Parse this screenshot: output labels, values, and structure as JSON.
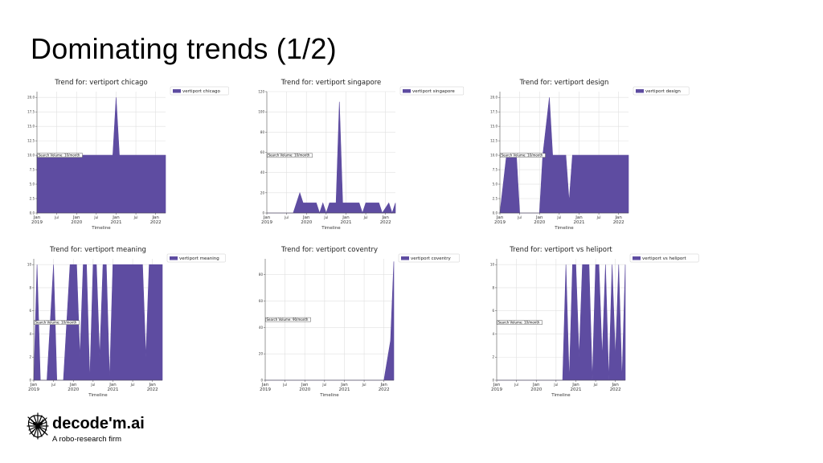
{
  "slide": {
    "title": "Dominating trends (1/2)"
  },
  "brand": {
    "name": "decode'm.ai",
    "tagline": "A robo-research firm",
    "logo_icon": "scribble-face-logo-icon"
  },
  "colors": {
    "fill": "#5e4ca1",
    "grid": "#e0e0e0",
    "axis": "#444444"
  },
  "chart_data": [
    {
      "type": "area",
      "title": "Trend for: vertiport chicago",
      "xlabel": "Timeline",
      "ylabel": "",
      "legend": "vertiport chicago",
      "legend_position": "outside-right",
      "annotation": "Search Volume: 10/month",
      "x_range": [
        "2019-01",
        "2022-04"
      ],
      "ylim": [
        0,
        21
      ],
      "yticks": [
        "0.0",
        "2.5",
        "5.0",
        "7.5",
        "10.0",
        "12.5",
        "15.0",
        "17.5",
        "20.0"
      ],
      "xticks": [
        {
          "date": "2019-01",
          "label": "Jan\n2019"
        },
        {
          "date": "2019-07",
          "label": "Jul"
        },
        {
          "date": "2020-01",
          "label": "Jan\n2020"
        },
        {
          "date": "2020-07",
          "label": "Jul"
        },
        {
          "date": "2021-01",
          "label": "Jan\n2021"
        },
        {
          "date": "2021-07",
          "label": "Jul"
        },
        {
          "date": "2022-01",
          "label": "Jan\n2022"
        }
      ],
      "grid": true,
      "points": [
        [
          "2019-01",
          10
        ],
        [
          "2020-12",
          10
        ],
        [
          "2021-01",
          20
        ],
        [
          "2021-02",
          10
        ],
        [
          "2022-04",
          10
        ]
      ]
    },
    {
      "type": "area",
      "title": "Trend for: vertiport singapore",
      "xlabel": "Timeline",
      "ylabel": "",
      "legend": "vertiport singapore",
      "legend_position": "outside-right",
      "annotation": "Search Volume: 10/month",
      "x_range": [
        "2019-01",
        "2022-04"
      ],
      "ylim": [
        0,
        120
      ],
      "yticks": [
        "0",
        "20",
        "40",
        "60",
        "80",
        "100",
        "120"
      ],
      "xticks": [
        {
          "date": "2019-01",
          "label": "Jan\n2019"
        },
        {
          "date": "2019-07",
          "label": "Jul"
        },
        {
          "date": "2020-01",
          "label": "Jan\n2020"
        },
        {
          "date": "2020-07",
          "label": "Jul"
        },
        {
          "date": "2021-01",
          "label": "Jan\n2021"
        },
        {
          "date": "2021-07",
          "label": "Jul"
        },
        {
          "date": "2022-01",
          "label": "Jan\n2022"
        }
      ],
      "grid": true,
      "points": [
        [
          "2019-01",
          0
        ],
        [
          "2019-09",
          0
        ],
        [
          "2019-11",
          20
        ],
        [
          "2019-12",
          10
        ],
        [
          "2020-04",
          10
        ],
        [
          "2020-05",
          0
        ],
        [
          "2020-06",
          10
        ],
        [
          "2020-07",
          0
        ],
        [
          "2020-08",
          10
        ],
        [
          "2020-10",
          10
        ],
        [
          "2020-11",
          110
        ],
        [
          "2020-12",
          10
        ],
        [
          "2021-05",
          10
        ],
        [
          "2021-06",
          0
        ],
        [
          "2021-07",
          10
        ],
        [
          "2021-11",
          10
        ],
        [
          "2021-12",
          0
        ],
        [
          "2022-02",
          10
        ],
        [
          "2022-03",
          0
        ],
        [
          "2022-04",
          10
        ]
      ]
    },
    {
      "type": "area",
      "title": "Trend for: vertiport design",
      "xlabel": "Timeline",
      "ylabel": "",
      "legend": "vertiport design",
      "legend_position": "outside-right",
      "annotation": "Search Volume: 10/month",
      "x_range": [
        "2019-01",
        "2022-04"
      ],
      "ylim": [
        0,
        21
      ],
      "yticks": [
        "0.0",
        "2.5",
        "5.0",
        "7.5",
        "10.0",
        "12.5",
        "15.0",
        "17.5",
        "20.0"
      ],
      "xticks": [
        {
          "date": "2019-01",
          "label": "Jan\n2019"
        },
        {
          "date": "2019-07",
          "label": "Jul"
        },
        {
          "date": "2020-01",
          "label": "Jan\n2020"
        },
        {
          "date": "2020-07",
          "label": "Jul"
        },
        {
          "date": "2021-01",
          "label": "Jan\n2021"
        },
        {
          "date": "2021-07",
          "label": "Jul"
        },
        {
          "date": "2022-01",
          "label": "Jan\n2022"
        }
      ],
      "grid": true,
      "points": [
        [
          "2019-01",
          0
        ],
        [
          "2019-03",
          10
        ],
        [
          "2019-06",
          10
        ],
        [
          "2019-07",
          0
        ],
        [
          "2020-01",
          0
        ],
        [
          "2020-02",
          10
        ],
        [
          "2020-04",
          20
        ],
        [
          "2020-05",
          10
        ],
        [
          "2020-09",
          10
        ],
        [
          "2020-10",
          2
        ],
        [
          "2020-11",
          10
        ],
        [
          "2022-04",
          10
        ]
      ]
    },
    {
      "type": "area",
      "title": "Trend for: vertiport meaning",
      "xlabel": "Timeline",
      "ylabel": "",
      "legend": "vertiport meaning",
      "legend_position": "outside-right",
      "annotation": "Search Volume: 10/month",
      "x_range": [
        "2019-01",
        "2022-04"
      ],
      "ylim": [
        0,
        10.5
      ],
      "yticks": [
        "0",
        "2",
        "4",
        "6",
        "8",
        "10"
      ],
      "xticks": [
        {
          "date": "2019-01",
          "label": "Jan\n2019"
        },
        {
          "date": "2019-07",
          "label": "Jul"
        },
        {
          "date": "2020-01",
          "label": "Jan\n2020"
        },
        {
          "date": "2020-07",
          "label": "Jul"
        },
        {
          "date": "2021-01",
          "label": "Jan\n2021"
        },
        {
          "date": "2021-07",
          "label": "Jul"
        },
        {
          "date": "2022-01",
          "label": "Jan\n2022"
        }
      ],
      "grid": true,
      "points": [
        [
          "2019-01",
          0
        ],
        [
          "2019-02",
          10
        ],
        [
          "2019-03",
          0
        ],
        [
          "2019-05",
          0
        ],
        [
          "2019-07",
          10
        ],
        [
          "2019-08",
          0
        ],
        [
          "2019-10",
          0
        ],
        [
          "2019-12",
          10
        ],
        [
          "2020-02",
          10
        ],
        [
          "2020-03",
          2
        ],
        [
          "2020-04",
          10
        ],
        [
          "2020-05",
          10
        ],
        [
          "2020-06",
          0
        ],
        [
          "2020-07",
          10
        ],
        [
          "2020-08",
          10
        ],
        [
          "2020-09",
          2
        ],
        [
          "2020-10",
          10
        ],
        [
          "2020-11",
          10
        ],
        [
          "2020-12",
          0
        ],
        [
          "2021-01",
          10
        ],
        [
          "2021-10",
          10
        ],
        [
          "2021-11",
          2
        ],
        [
          "2021-12",
          10
        ],
        [
          "2022-04",
          10
        ]
      ]
    },
    {
      "type": "area",
      "title": "Trend for: vertiport coventry",
      "xlabel": "Timeline",
      "ylabel": "",
      "legend": "vertiport coventry",
      "legend_position": "outside-right",
      "annotation": "Search Volume: 90/month",
      "x_range": [
        "2019-01",
        "2022-04"
      ],
      "ylim": [
        0,
        92
      ],
      "yticks": [
        "0",
        "20",
        "40",
        "60",
        "80"
      ],
      "xticks": [
        {
          "date": "2019-01",
          "label": "Jan\n2019"
        },
        {
          "date": "2019-07",
          "label": "Jul"
        },
        {
          "date": "2020-01",
          "label": "Jan\n2020"
        },
        {
          "date": "2020-07",
          "label": "Jul"
        },
        {
          "date": "2021-01",
          "label": "Jan\n2021"
        },
        {
          "date": "2021-07",
          "label": "Jul"
        },
        {
          "date": "2022-01",
          "label": "Jan\n2022"
        }
      ],
      "grid": true,
      "points": [
        [
          "2019-01",
          0
        ],
        [
          "2022-01",
          0
        ],
        [
          "2022-03",
          30
        ],
        [
          "2022-04",
          90
        ]
      ]
    },
    {
      "type": "area",
      "title": "Trend for: vertiport vs heliport",
      "xlabel": "Timeline",
      "ylabel": "",
      "legend": "vertiport vs heliport",
      "legend_position": "outside-right",
      "annotation": "Search Volume: 10/month",
      "x_range": [
        "2019-01",
        "2022-04"
      ],
      "ylim": [
        0,
        10.5
      ],
      "yticks": [
        "0",
        "2",
        "4",
        "6",
        "8",
        "10"
      ],
      "xticks": [
        {
          "date": "2019-01",
          "label": "Jan\n2019"
        },
        {
          "date": "2019-07",
          "label": "Jul"
        },
        {
          "date": "2020-01",
          "label": "Jan\n2020"
        },
        {
          "date": "2020-07",
          "label": "Jul"
        },
        {
          "date": "2021-01",
          "label": "Jan\n2021"
        },
        {
          "date": "2021-07",
          "label": "Jul"
        },
        {
          "date": "2022-01",
          "label": "Jan\n2022"
        }
      ],
      "grid": true,
      "points": [
        [
          "2019-01",
          0
        ],
        [
          "2020-09",
          0
        ],
        [
          "2020-10",
          10
        ],
        [
          "2020-11",
          0
        ],
        [
          "2020-12",
          10
        ],
        [
          "2021-01",
          10
        ],
        [
          "2021-02",
          2
        ],
        [
          "2021-03",
          10
        ],
        [
          "2021-05",
          10
        ],
        [
          "2021-06",
          0
        ],
        [
          "2021-07",
          10
        ],
        [
          "2021-08",
          10
        ],
        [
          "2021-09",
          2
        ],
        [
          "2021-10",
          10
        ],
        [
          "2021-11",
          0
        ],
        [
          "2021-12",
          10
        ],
        [
          "2022-01",
          2
        ],
        [
          "2022-02",
          10
        ],
        [
          "2022-03",
          0
        ],
        [
          "2022-04",
          10
        ]
      ]
    }
  ]
}
